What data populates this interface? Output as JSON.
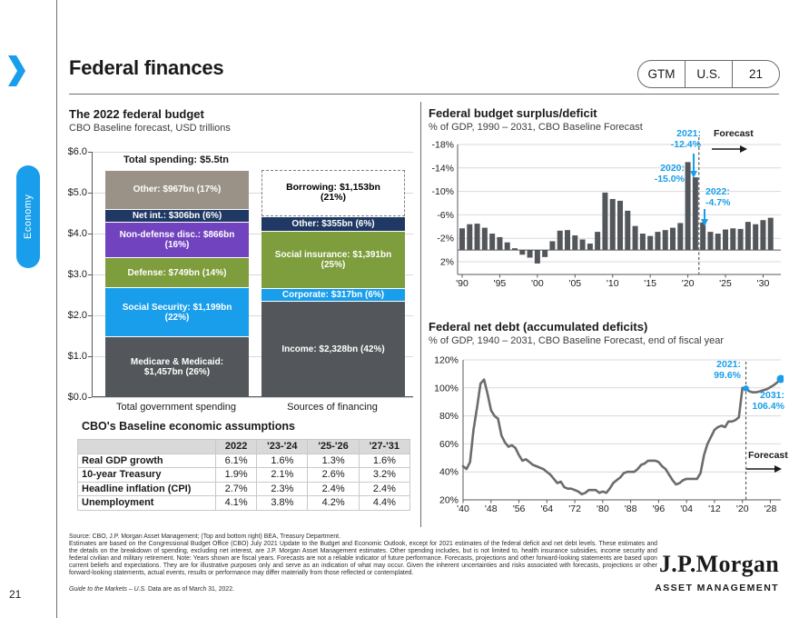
{
  "page": {
    "number": "21",
    "sidebar_label": "Economy"
  },
  "header": {
    "title": "Federal finances",
    "tabs": [
      "GTM",
      "U.S.",
      "21"
    ]
  },
  "colors": {
    "accent": "#189EEB",
    "navy": "#1F3864",
    "blue": "#189EEB",
    "green": "#7E9D3C",
    "purple": "#7143BE",
    "warmgray": "#9A9287",
    "darkgray": "#53565A",
    "line": "#6A6C6E",
    "axis": "#58595B",
    "grid": "#D9D9D9",
    "ink": "#1A1A1A"
  },
  "chart_data": [
    {
      "type": "stacked-bar",
      "title": "The 2022 federal budget",
      "subtitle": "CBO Baseline forecast, USD trillions",
      "total_label": "Total spending: $5.5tn",
      "ylim": [
        0,
        6
      ],
      "yticks": [
        "$6.0",
        "$5.0",
        "$4.0",
        "$3.0",
        "$2.0",
        "$1.0",
        "$0.0"
      ],
      "categories": [
        "Total government spending",
        "Sources of financing"
      ],
      "bars": [
        {
          "name": "Total government spending",
          "segments": [
            {
              "label": "Medicare & Medicaid: $1,457bn (26%)",
              "value": 1.457,
              "color": "darkgray"
            },
            {
              "label": "Social Security: $1,199bn (22%)",
              "value": 1.199,
              "color": "blue"
            },
            {
              "label": "Defense: $749bn (14%)",
              "value": 0.749,
              "color": "green"
            },
            {
              "label": "Non-defense disc.: $866bn (16%)",
              "value": 0.866,
              "color": "purple"
            },
            {
              "label": "Net int.: $306bn (6%)",
              "value": 0.306,
              "color": "navy"
            },
            {
              "label": "Other: $967bn (17%)",
              "value": 0.967,
              "color": "warmgray"
            }
          ]
        },
        {
          "name": "Sources of financing",
          "segments": [
            {
              "label": "Income: $2,328bn (42%)",
              "value": 2.328,
              "color": "darkgray"
            },
            {
              "label": "Corporate: $317bn (6%)",
              "value": 0.317,
              "color": "blue"
            },
            {
              "label": "Social insurance: $1,391bn (25%)",
              "value": 1.391,
              "color": "green"
            },
            {
              "label": "Other: $355bn (6%)",
              "value": 0.355,
              "color": "navy"
            },
            {
              "label": "Borrowing: $1,153bn (21%)",
              "value": 1.153,
              "color": "dashed"
            }
          ]
        }
      ]
    },
    {
      "type": "bar",
      "title": "Federal budget surplus/deficit",
      "subtitle": "% of GDP, 1990 – 2031, CBO Baseline Forecast",
      "ylabel": "% of GDP",
      "start_year": 1990,
      "end_year": 2031,
      "values": [
        -3.7,
        -4.4,
        -4.5,
        -3.8,
        -2.8,
        -2.2,
        -1.3,
        -0.3,
        0.8,
        1.3,
        2.3,
        1.2,
        -1.5,
        -3.3,
        -3.4,
        -2.5,
        -1.8,
        -1.1,
        -3.1,
        -9.8,
        -8.7,
        -8.4,
        -6.7,
        -4.1,
        -2.8,
        -2.4,
        -3.1,
        -3.4,
        -3.8,
        -4.6,
        -15.0,
        -12.4,
        -4.7,
        -3.1,
        -2.8,
        -3.5,
        -3.7,
        -3.6,
        -4.8,
        -4.4,
        -5.1,
        -5.5
      ],
      "yticks": [
        -18,
        -14,
        -10,
        -6,
        -2,
        2
      ],
      "xtick_step": 5,
      "axis_inverted": true,
      "forecast_divider_year": 2022,
      "annotations": {
        "y2020": [
          "2020:",
          "-15.0%"
        ],
        "y2021": [
          "2021:",
          "-12.4%"
        ],
        "y2022": [
          "2022:",
          "-4.7%"
        ],
        "forecast": "Forecast"
      }
    },
    {
      "type": "line",
      "title": "Federal net debt (accumulated deficits)",
      "subtitle": "% of GDP, 1940 – 2031, CBO Baseline Forecast, end of fiscal year",
      "ylabel": "% of GDP",
      "start_year": 1940,
      "end_year": 2031,
      "values": [
        44,
        42,
        47,
        70,
        86,
        103,
        106,
        96,
        84,
        80,
        78,
        66,
        61,
        58,
        59,
        57,
        52,
        48,
        49,
        47,
        45,
        44,
        43,
        42,
        40,
        38,
        35,
        32,
        33,
        29,
        28,
        28,
        27,
        26,
        24,
        25,
        27,
        27,
        27,
        25,
        26,
        25,
        28,
        32,
        34,
        36,
        39,
        40,
        40,
        40,
        42,
        45,
        46,
        48,
        48,
        48,
        47,
        44,
        42,
        38,
        34,
        31,
        32,
        34,
        35,
        35,
        35,
        35,
        39,
        52,
        60,
        65,
        70,
        72,
        73,
        72,
        76,
        76,
        77,
        79,
        100,
        99.6,
        97.5,
        96.8,
        96.9,
        97.5,
        98.3,
        99,
        100.5,
        102,
        104,
        106.4
      ],
      "yticks": [
        120,
        100,
        80,
        60,
        40,
        20
      ],
      "xtick_step": 8,
      "forecast_divider_year": 2021,
      "markers": [
        {
          "year": 2021,
          "value": 99.6
        },
        {
          "year": 2031,
          "value": 106.4
        }
      ],
      "annotations": {
        "y2021": [
          "2021:",
          "99.6%"
        ],
        "y2031": [
          "2031:",
          "106.4%"
        ],
        "forecast": "Forecast"
      }
    },
    {
      "type": "table",
      "title": "CBO's Baseline economic assumptions",
      "headers": [
        "",
        "2022",
        "'23-'24",
        "'25-'26",
        "'27-'31"
      ],
      "rows": [
        [
          "Real GDP growth",
          "6.1%",
          "1.6%",
          "1.3%",
          "1.6%"
        ],
        [
          "10-year Treasury",
          "1.9%",
          "2.1%",
          "2.6%",
          "3.2%"
        ],
        [
          "Headline inflation (CPI)",
          "2.7%",
          "2.3%",
          "2.4%",
          "2.4%"
        ],
        [
          "Unemployment",
          "4.1%",
          "3.8%",
          "4.2%",
          "4.4%"
        ]
      ]
    }
  ],
  "footer": {
    "source": "Source: CBO, J.P. Morgan Asset Management; (Top and bottom right) BEA, Treasury Department.",
    "body": "Estimates are based on the Congressional Budget Office (CBO) July 2021 Update to the Budget and Economic Outlook, except for 2021 estimates of the federal deficit and net debt levels. These estimates and the details on the breakdown of spending, excluding net interest, are J.P. Morgan Asset Management estimates. Other spending includes, but is not limited to, health insurance subsidies, income security and federal civilian and military retirement. Note: Years shown are fiscal years. Forecasts are not a reliable indicator of future performance. Forecasts, projections and other forward-looking statements are based upon current beliefs and expectations. They are for illustrative purposes only and serve as an indication of what may occur. Given the inherent uncertainties and risks associated with forecasts, projections or other forward-looking statements, actual events, results or performance may differ materially from those reflected or contemplated.",
    "guide_italic": "Guide to the Markets – U.S.",
    "guide_rest": " Data are as of March 31, 2022."
  },
  "logo": {
    "name": "J.P.Morgan",
    "sub": "ASSET MANAGEMENT"
  }
}
